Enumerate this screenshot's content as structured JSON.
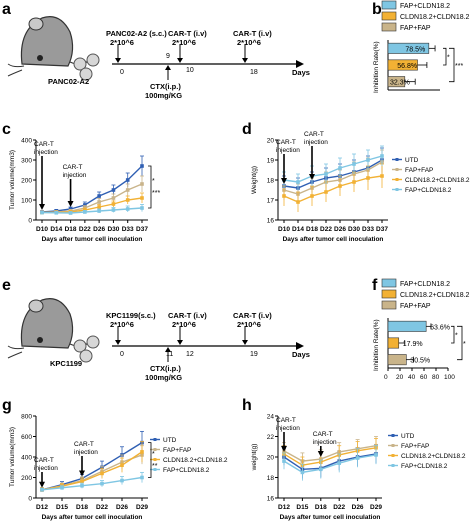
{
  "panel_labels": {
    "a": "a",
    "b": "b",
    "c": "c",
    "d": "d",
    "e": "e",
    "f": "f",
    "g": "g",
    "h": "h"
  },
  "colors": {
    "utd": "#2f5fb3",
    "fap_fap": "#c9b48a",
    "cldn_cldn": "#f2b134",
    "fap_cldn": "#7fc6e3",
    "bar_outline": "#333333"
  },
  "schema_a": {
    "tumor_label": "PANC02-A2",
    "inoc_label": "PANC02-A2 (s.c.)",
    "inoc_dose": "2*10^6",
    "cart1_label": "CAR-T (i.v)",
    "cart1_dose": "2*10^6",
    "cart2_label": "CAR-T (i.v)",
    "cart2_dose": "2*10^6",
    "ticks": [
      "0",
      "9",
      "10",
      "18"
    ],
    "ctx_label": "CTX(i.p.)",
    "ctx_dose": "100mg/KG",
    "axis_label": "Days"
  },
  "schema_e": {
    "tumor_label": "KPC1199",
    "inoc_label": "KPC1199(s.c.)",
    "inoc_dose": "2*10^6",
    "cart1_label": "CAR-T (i.v)",
    "cart1_dose": "2*10^6",
    "cart2_label": "CAR-T (i.v)",
    "cart2_dose": "2*10^6",
    "ticks": [
      "0",
      "11",
      "12",
      "19"
    ],
    "ctx_label": "CTX(i.p.)",
    "ctx_dose": "100mg/KG",
    "axis_label": "Days"
  },
  "chart_data": [
    {
      "id": "b",
      "type": "bar",
      "orientation": "horizontal",
      "categories": [
        "FAP+CLDN18.2",
        "CLDN18.2+CLDN18.2",
        "FAP+FAP"
      ],
      "values": [
        78.5,
        56.8,
        32.3
      ],
      "value_labels": [
        "78.5%",
        "56.8%",
        "32.3%"
      ],
      "errors": [
        12,
        18,
        20
      ],
      "ylabel": "Inhibition Rate(%)",
      "legend": [
        "FAP+CLDN18.2",
        "CLDN18.2+CLDN18.2",
        "FAP+FAP"
      ],
      "xlim": [
        0,
        100
      ],
      "significance": [
        "*",
        "***"
      ]
    },
    {
      "id": "c",
      "type": "line",
      "xlabel": "Days after tumor cell inoculation",
      "ylabel": "Tumor volume(mm3)",
      "categories": [
        "D10",
        "D14",
        "D18",
        "D22",
        "D26",
        "D30",
        "D33",
        "D37"
      ],
      "ylim": [
        0,
        400
      ],
      "yticks": [
        "0",
        "100",
        "200",
        "300",
        "400"
      ],
      "series": [
        {
          "name": "UTD",
          "values": [
            40,
            45,
            55,
            75,
            120,
            150,
            200,
            270
          ],
          "err": [
            6,
            8,
            10,
            15,
            20,
            25,
            35,
            50
          ]
        },
        {
          "name": "FAP+FAP",
          "values": [
            38,
            40,
            45,
            60,
            90,
            110,
            150,
            180
          ],
          "err": [
            5,
            7,
            8,
            12,
            18,
            20,
            30,
            40
          ]
        },
        {
          "name": "CLDN18.2+CLDN18.2",
          "values": [
            38,
            38,
            40,
            50,
            65,
            80,
            100,
            110
          ],
          "err": [
            5,
            6,
            8,
            10,
            12,
            15,
            20,
            25
          ]
        },
        {
          "name": "FAP+CLDN18.2",
          "values": [
            37,
            36,
            35,
            40,
            45,
            50,
            55,
            60
          ],
          "err": [
            5,
            5,
            6,
            8,
            10,
            12,
            15,
            18
          ]
        }
      ],
      "annotations": [
        "CAR-T injection",
        "CAR-T injection"
      ],
      "significance": [
        "*",
        "***"
      ]
    },
    {
      "id": "d",
      "type": "line",
      "xlabel": "Days after tumor cell inoculation",
      "ylabel": "Weight(g)",
      "categories": [
        "D10",
        "D14",
        "D18",
        "D22",
        "D26",
        "D30",
        "D33",
        "D37"
      ],
      "ylim": [
        16,
        20
      ],
      "yticks": [
        "16",
        "17",
        "18",
        "19",
        "20"
      ],
      "series": [
        {
          "name": "UTD",
          "values": [
            17.7,
            17.6,
            17.9,
            18.1,
            18.2,
            18.4,
            18.6,
            19.0
          ],
          "err": [
            0.5,
            0.5,
            0.5,
            0.5,
            0.6,
            0.6,
            0.6,
            0.6
          ]
        },
        {
          "name": "FAP+FAP",
          "values": [
            17.5,
            17.3,
            17.6,
            17.9,
            18.0,
            18.3,
            18.5,
            18.9
          ],
          "err": [
            0.5,
            0.5,
            0.5,
            0.5,
            0.5,
            0.6,
            0.6,
            0.6
          ]
        },
        {
          "name": "CLDN18.2+CLDN18.2",
          "values": [
            17.2,
            16.9,
            17.2,
            17.4,
            17.7,
            17.9,
            18.1,
            18.2
          ],
          "err": [
            0.5,
            0.5,
            0.5,
            0.5,
            0.5,
            0.5,
            0.6,
            0.6
          ]
        },
        {
          "name": "FAP+CLDN18.2",
          "values": [
            18.0,
            17.9,
            18.2,
            18.3,
            18.6,
            18.8,
            19.0,
            19.2
          ],
          "err": [
            0.4,
            0.4,
            0.5,
            0.5,
            0.5,
            0.5,
            0.5,
            0.5
          ]
        }
      ],
      "legend": [
        "UTD",
        "FAP+FAP",
        "CLDN18.2+CLDN18.2",
        "FAP+CLDN18.2"
      ],
      "annotations": [
        "CAR-T injection",
        "CAR-T injection"
      ]
    },
    {
      "id": "f",
      "type": "bar",
      "orientation": "horizontal",
      "categories": [
        "FAP+CLDN18.2",
        "CLDN18.2+CLDN18.2",
        "FAP+FAP"
      ],
      "values": [
        63.6,
        17.9,
        30.5
      ],
      "value_labels": [
        "63.6%",
        "17.9%",
        "30.5%"
      ],
      "errors": [
        8,
        10,
        12
      ],
      "ylabel": "Inhibition Rate(%)",
      "legend": [
        "FAP+CLDN18.2",
        "CLDN18.2+CLDN18.2",
        "FAP+FAP"
      ],
      "xticks": [
        "0",
        "20",
        "40",
        "60",
        "80",
        "100"
      ],
      "xlim": [
        0,
        100
      ],
      "significance": [
        "*",
        "*"
      ]
    },
    {
      "id": "g",
      "type": "line",
      "xlabel": "Days after tumor cell inoculation",
      "ylabel": "Tumor volume(mm3)",
      "categories": [
        "D12",
        "D15",
        "D18",
        "D22",
        "D26",
        "D29"
      ],
      "ylim": [
        0,
        800
      ],
      "yticks": [
        "0",
        "200",
        "400",
        "600",
        "800"
      ],
      "series": [
        {
          "name": "UTD",
          "values": [
            80,
            130,
            190,
            300,
            420,
            540
          ],
          "err": [
            20,
            30,
            40,
            60,
            80,
            110
          ]
        },
        {
          "name": "FAP+FAP",
          "values": [
            80,
            120,
            170,
            260,
            350,
            420
          ],
          "err": [
            20,
            25,
            35,
            50,
            70,
            90
          ]
        },
        {
          "name": "CLDN18.2+CLDN18.2",
          "values": [
            80,
            115,
            160,
            240,
            320,
            450
          ],
          "err": [
            20,
            25,
            35,
            50,
            70,
            100
          ]
        },
        {
          "name": "FAP+CLDN18.2",
          "values": [
            80,
            100,
            120,
            140,
            170,
            200
          ],
          "err": [
            15,
            20,
            25,
            30,
            40,
            50
          ]
        }
      ],
      "legend": [
        "UTD",
        "FAP+FAP",
        "CLDN18.2+CLDN18.2",
        "FAP+CLDN18.2"
      ],
      "annotations": [
        "CAR-T injection",
        "CAR-T injection"
      ],
      "significance": [
        "*",
        "**"
      ]
    },
    {
      "id": "h",
      "type": "line",
      "xlabel": "Days after tumor cell inoculation",
      "ylabel": "weight(g)",
      "categories": [
        "D12",
        "D15",
        "D18",
        "D22",
        "D26",
        "D29"
      ],
      "ylim": [
        16,
        24
      ],
      "yticks": [
        "16",
        "18",
        "20",
        "22",
        "24"
      ],
      "series": [
        {
          "name": "UTD",
          "values": [
            20.0,
            18.8,
            18.9,
            19.6,
            20.0,
            20.3
          ],
          "err": [
            0.8,
            0.9,
            0.9,
            0.9,
            0.9,
            0.9
          ]
        },
        {
          "name": "FAP+FAP",
          "values": [
            20.6,
            19.6,
            19.8,
            20.5,
            20.8,
            21.1
          ],
          "err": [
            0.8,
            0.8,
            0.9,
            0.9,
            0.9,
            0.9
          ]
        },
        {
          "name": "CLDN18.2+CLDN18.2",
          "values": [
            20.3,
            19.2,
            19.5,
            20.2,
            20.6,
            20.9
          ],
          "err": [
            0.8,
            0.8,
            0.9,
            0.9,
            0.9,
            0.9
          ]
        },
        {
          "name": "FAP+CLDN18.2",
          "values": [
            19.6,
            18.5,
            18.8,
            19.4,
            19.9,
            20.2
          ],
          "err": [
            0.8,
            0.8,
            0.9,
            0.9,
            0.9,
            0.9
          ]
        }
      ],
      "legend": [
        "UTD",
        "FAP+FAP",
        "CLDN18.2+CLDN18.2",
        "FAP+CLDN18.2"
      ],
      "annotations": [
        "CAR-T injection",
        "CAR-T injection"
      ]
    }
  ]
}
